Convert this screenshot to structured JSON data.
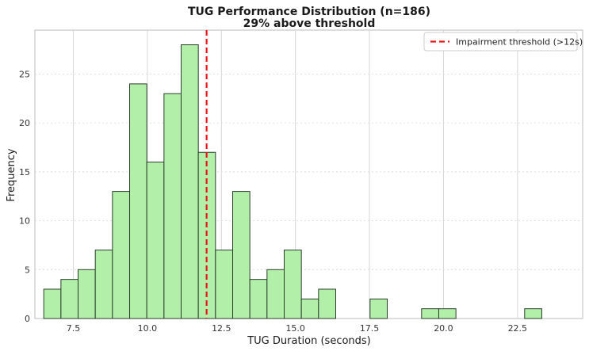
{
  "chart_data": {
    "type": "bar",
    "title": "TUG Performance Distribution (n=186)",
    "subtitle": "29% above threshold",
    "xlabel": "TUG Duration (seconds)",
    "ylabel": "Frequency",
    "xlim": [
      6.2,
      24.7
    ],
    "ylim": [
      0,
      29.5
    ],
    "x_ticks": [
      7.5,
      10.0,
      12.5,
      15.0,
      17.5,
      20.0,
      22.5
    ],
    "x_tick_labels": [
      "7.5",
      "10.0",
      "12.5",
      "15.0",
      "17.5",
      "20.0",
      "22.5"
    ],
    "y_ticks": [
      0,
      5,
      10,
      15,
      20,
      25
    ],
    "y_tick_labels": [
      "0",
      "5",
      "10",
      "15",
      "20",
      "25"
    ],
    "bin_start": 6.5,
    "bin_width": 0.58,
    "counts": [
      3,
      4,
      5,
      7,
      13,
      24,
      16,
      23,
      28,
      17,
      7,
      13,
      4,
      5,
      7,
      2,
      3,
      0,
      0,
      2,
      0,
      0,
      1,
      1,
      0,
      0,
      0,
      0,
      1
    ],
    "threshold": 12,
    "threshold_label": "Impairment threshold (>12s)",
    "legend_position": "top-right",
    "grid": true,
    "colors": {
      "bar_fill": "#b2f0aa",
      "bar_edge": "#2b3d2b",
      "threshold": "#e8161b",
      "grid": "#d7d7d7",
      "axis": "#bbbbbb"
    }
  }
}
